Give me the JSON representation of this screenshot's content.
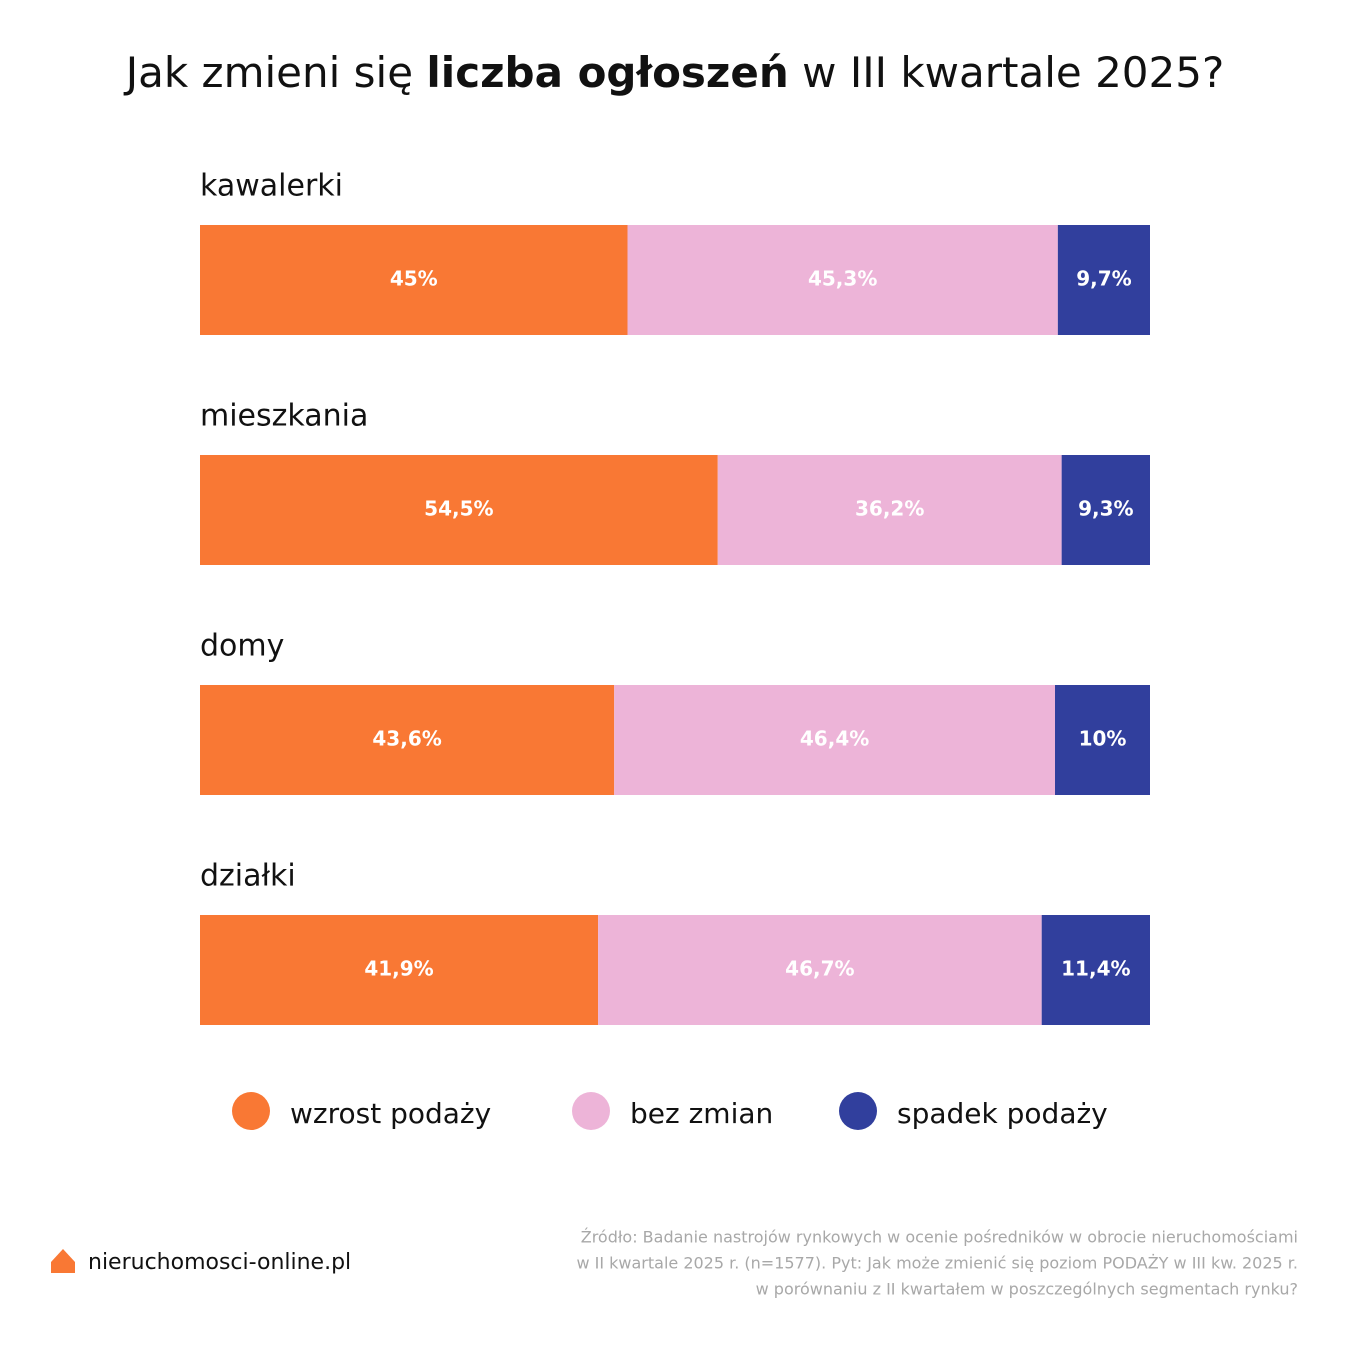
{
  "chart_data": {
    "type": "stacked-bar-horizontal",
    "title": [
      "Jak zmieni się ",
      "liczba ogłoszeń",
      " w III kwartale 2025?"
    ],
    "title_bold_part": 1,
    "categories": [
      "kawalerki",
      "mieszkania",
      "domy",
      "działki"
    ],
    "series": [
      {
        "name": "wzrost podaży",
        "color": "#f97834",
        "values": [
          45,
          54.5,
          43.6,
          41.9
        ],
        "value_labels": [
          "45%",
          "54,5%",
          "43,6%",
          "41,9%"
        ]
      },
      {
        "name": "bez zmian",
        "color": "#edb4d8",
        "values": [
          45.3,
          36.2,
          46.4,
          46.7
        ],
        "value_labels": [
          "45,3%",
          "36,2%",
          "46,4%",
          "46,7%"
        ]
      },
      {
        "name": "spadek podaży",
        "color": "#313f9d",
        "values": [
          9.7,
          9.3,
          10,
          11.4
        ],
        "value_labels": [
          "9,7%",
          "9,3%",
          "10%",
          "11,4%"
        ]
      }
    ],
    "xlim": [
      0,
      100
    ],
    "brand": "nieruchomosci-online.pl",
    "source": [
      "Źródło: Badanie nastrojów rynkowych w ocenie pośredników w obrocie nieruchomościami",
      "w II kwartale 2025 r. (n=1577). Pyt: Jak może zmienić się poziom PODAŻY w III kw. 2025 r.",
      "w porównaniu z II kwartałem w poszczególnych segmentach rynku?"
    ]
  }
}
